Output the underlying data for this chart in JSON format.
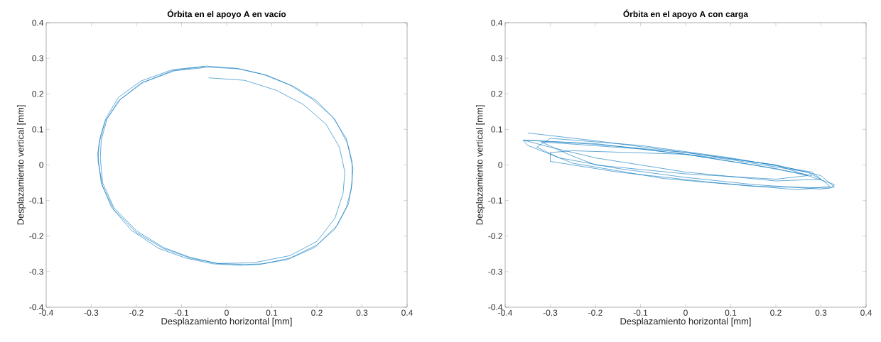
{
  "chart_data": [
    {
      "type": "line",
      "title": "**Órbita en el apoyo A en vacío**",
      "xlabel": "Desplazamiento horizontal [mm]",
      "ylabel": "Desplazamiento vertical [mm]",
      "xlim": [
        -0.4,
        0.4
      ],
      "ylim": [
        -0.4,
        0.4
      ],
      "xticks": [
        -0.4,
        -0.3,
        -0.2,
        -0.1,
        0,
        0.1,
        0.2,
        0.3,
        0.4
      ],
      "yticks": [
        -0.4,
        -0.3,
        -0.2,
        -0.1,
        0,
        0.1,
        0.2,
        0.3,
        0.4
      ],
      "grid": false,
      "marker": "none",
      "series": [
        {
          "color": "#0072bd",
          "x": [
            -0.04,
            0.04,
            0.11,
            0.17,
            0.22,
            0.25,
            0.262,
            0.258,
            0.24,
            0.2,
            0.14,
            0.06,
            -0.02,
            -0.08,
            -0.14,
            -0.2,
            -0.25,
            -0.275,
            -0.285,
            -0.283,
            -0.27,
            -0.24,
            -0.19,
            -0.12,
            -0.045,
            0.02,
            0.08,
            0.14,
            0.19,
            0.235,
            0.265,
            0.278,
            0.278,
            0.27,
            0.245,
            0.2,
            0.14,
            0.08,
            0.04,
            -0.02,
            -0.08,
            -0.14,
            -0.2,
            -0.25,
            -0.275,
            -0.28,
            -0.278,
            -0.265,
            -0.235,
            -0.185,
            -0.115,
            -0.04,
            0.03,
            0.09,
            0.15,
            0.2,
            0.24,
            0.268,
            0.28,
            0.276,
            0.265,
            0.24,
            0.195,
            0.135,
            0.07,
            0.03,
            -0.03,
            -0.09,
            -0.15,
            -0.21,
            -0.255,
            -0.278,
            -0.286,
            -0.28,
            -0.268,
            -0.24,
            -0.19,
            -0.12,
            -0.05
          ],
          "values": [
            0.245,
            0.238,
            0.21,
            0.17,
            0.115,
            0.05,
            -0.02,
            -0.08,
            -0.15,
            -0.215,
            -0.255,
            -0.275,
            -0.277,
            -0.262,
            -0.235,
            -0.19,
            -0.125,
            -0.06,
            0.01,
            0.06,
            0.12,
            0.18,
            0.23,
            0.265,
            0.278,
            0.272,
            0.255,
            0.225,
            0.185,
            0.135,
            0.075,
            0.01,
            -0.05,
            -0.11,
            -0.17,
            -0.225,
            -0.262,
            -0.278,
            -0.28,
            -0.277,
            -0.26,
            -0.232,
            -0.185,
            -0.12,
            -0.05,
            0.02,
            0.07,
            0.13,
            0.185,
            0.232,
            0.265,
            0.275,
            0.27,
            0.252,
            0.22,
            0.18,
            0.128,
            0.06,
            -0.01,
            -0.07,
            -0.12,
            -0.18,
            -0.232,
            -0.266,
            -0.28,
            -0.282,
            -0.278,
            -0.262,
            -0.235,
            -0.185,
            -0.12,
            -0.05,
            0.03,
            0.08,
            0.13,
            0.19,
            0.236,
            0.268,
            0.277
          ]
        }
      ]
    },
    {
      "type": "line",
      "title": "**Órbita en el apoyo A con carga**",
      "xlabel": "Desplazamiento horizontal [mm]",
      "ylabel": "Desplazamiento vertical [mm]",
      "xlim": [
        -0.4,
        0.4
      ],
      "ylim": [
        -0.4,
        0.4
      ],
      "xticks": [
        -0.4,
        -0.3,
        -0.2,
        -0.1,
        0,
        0.1,
        0.2,
        0.3,
        0.4
      ],
      "yticks": [
        -0.4,
        -0.3,
        -0.2,
        -0.1,
        0,
        0.1,
        0.2,
        0.3,
        0.4
      ],
      "grid": false,
      "marker": "none",
      "series": [
        {
          "color": "#0072bd",
          "x": [
            -0.35,
            -0.2,
            0,
            0.2,
            0.3,
            0.33,
            0.3,
            0.15,
            0,
            -0.15,
            -0.28,
            -0.33,
            -0.3,
            -0.1,
            0.1,
            0.28,
            0.32,
            0.25,
            0.05,
            -0.15,
            -0.3,
            -0.3,
            -0.25,
            0,
            0.2,
            0.27,
            0.2,
            0,
            -0.2,
            -0.26,
            -0.32,
            -0.1,
            0.1,
            0.27,
            0.3,
            0.2,
            0,
            -0.2,
            -0.3,
            -0.36,
            -0.2,
            0,
            0.2,
            0.33,
            0.32,
            0.15,
            -0.05,
            -0.25,
            -0.35,
            -0.36,
            -0.2,
            0,
            0.15,
            0.28
          ],
          "values": [
            0.09,
            0.068,
            0.035,
            0.0,
            -0.03,
            -0.062,
            -0.068,
            -0.055,
            -0.035,
            -0.01,
            0.02,
            0.05,
            0.075,
            0.055,
            0.02,
            -0.02,
            -0.06,
            -0.07,
            -0.048,
            -0.02,
            0.01,
            0.035,
            0.04,
            0.03,
            -0.01,
            -0.03,
            -0.04,
            -0.025,
            0.0,
            0.03,
            0.065,
            0.045,
            0.015,
            -0.02,
            -0.04,
            -0.045,
            -0.02,
            0.02,
            0.05,
            0.07,
            0.058,
            0.035,
            0.0,
            -0.055,
            -0.065,
            -0.06,
            -0.038,
            0.005,
            0.055,
            0.07,
            0.06,
            0.03,
            0.0,
            -0.03
          ]
        }
      ]
    }
  ]
}
